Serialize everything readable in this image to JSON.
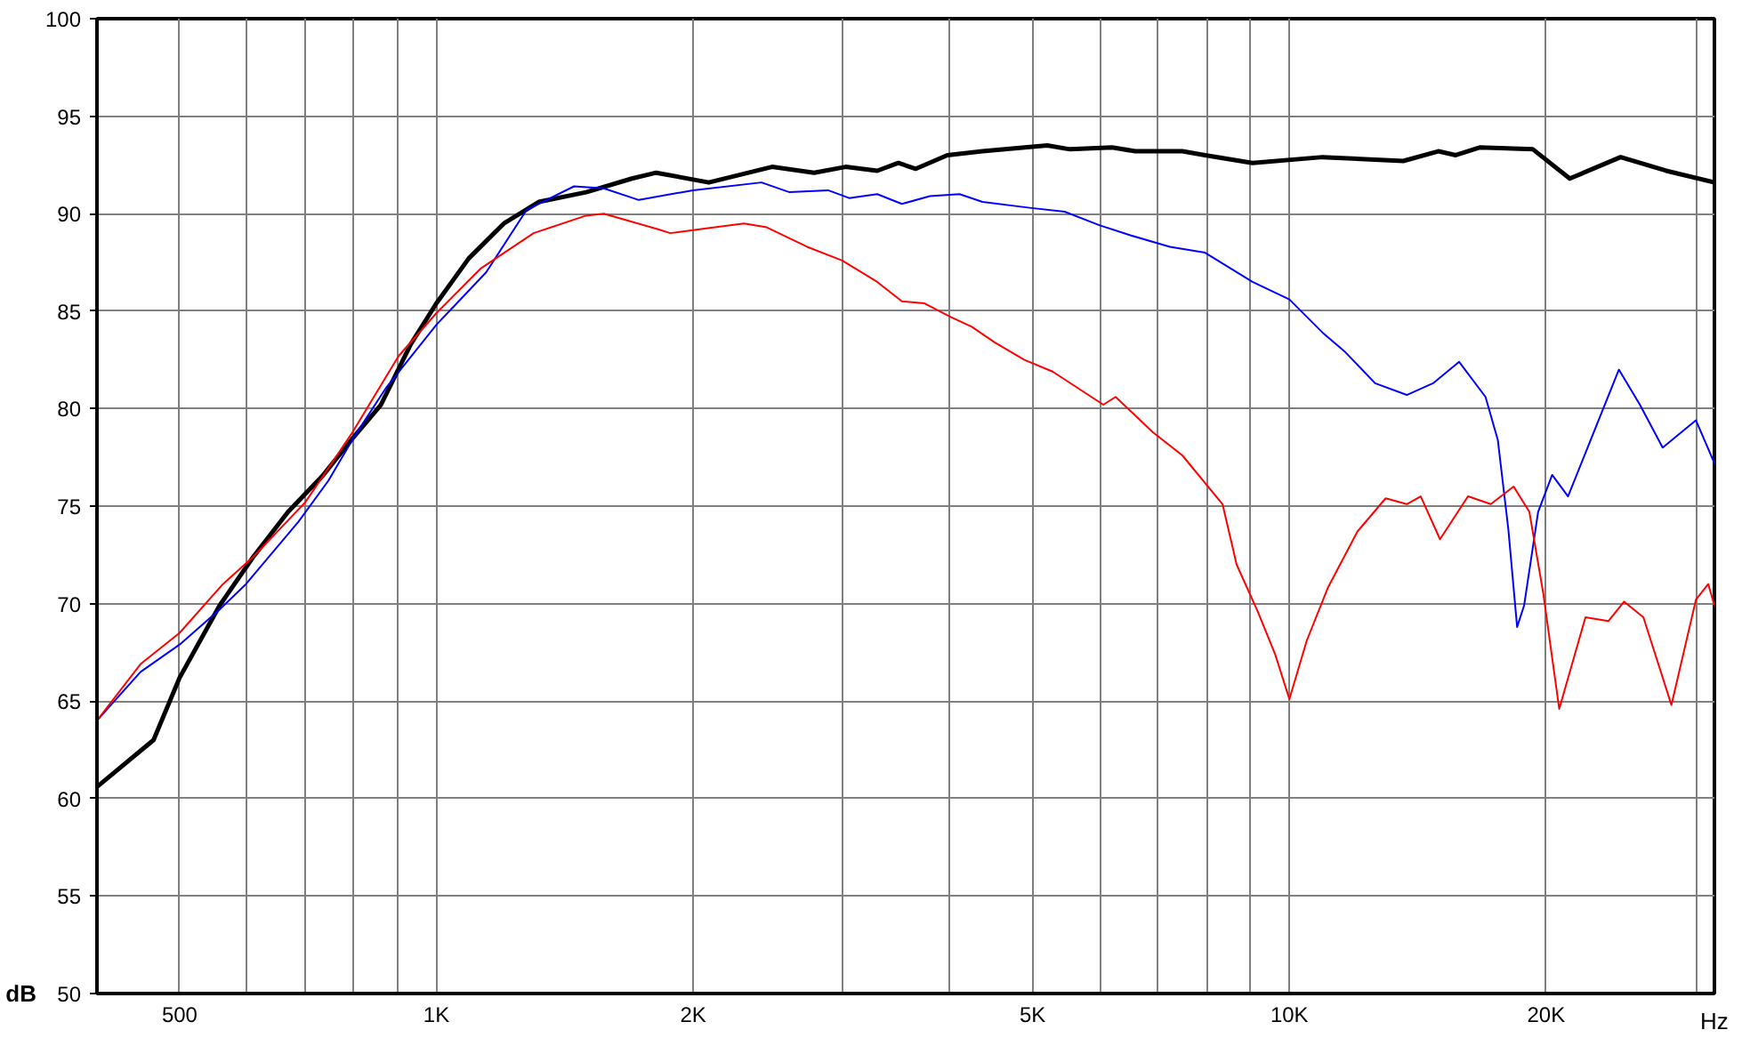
{
  "chart_data": {
    "type": "line",
    "xlabel": "Hz",
    "ylabel": "dB",
    "log": "x",
    "grid": true,
    "marker": "none",
    "line_style": "solid",
    "xlim": [
      400,
      31500
    ],
    "ylim": [
      50,
      100
    ],
    "xticks": [
      {
        "value": 400,
        "label": null
      },
      {
        "value": 500,
        "label": "500"
      },
      {
        "value": 600,
        "label": null
      },
      {
        "value": 700,
        "label": null
      },
      {
        "value": 800,
        "label": null
      },
      {
        "value": 900,
        "label": null
      },
      {
        "value": 1000,
        "label": "1K"
      },
      {
        "value": 2000,
        "label": "2K"
      },
      {
        "value": 3000,
        "label": null
      },
      {
        "value": 4000,
        "label": null
      },
      {
        "value": 5000,
        "label": "5K"
      },
      {
        "value": 6000,
        "label": null
      },
      {
        "value": 7000,
        "label": null
      },
      {
        "value": 8000,
        "label": null
      },
      {
        "value": 9000,
        "label": null
      },
      {
        "value": 10000,
        "label": "10K"
      },
      {
        "value": 20000,
        "label": "20K"
      },
      {
        "value": 30000,
        "label": null
      }
    ],
    "yticks": [
      50,
      55,
      60,
      65,
      70,
      75,
      80,
      85,
      90,
      95,
      100
    ],
    "series": [
      {
        "color": "#000000",
        "x": [
          400,
          466,
          500,
          557,
          610,
          670,
          737,
          795,
          861,
          933,
          1000,
          1091,
          1200,
          1318,
          1498,
          1695,
          1810,
          2086,
          2474,
          2772,
          3018,
          3287,
          3480,
          3648,
          3972,
          4368,
          5201,
          5532,
          6197,
          6593,
          7491,
          7964,
          9052,
          10937,
          13600,
          14947,
          15668,
          16740,
          19296,
          21317,
          24453,
          27653,
          31500
        ],
        "values": [
          60.6,
          63.0,
          66.2,
          69.9,
          72.4,
          74.7,
          76.6,
          78.4,
          80.2,
          83.3,
          85.4,
          87.7,
          89.5,
          90.6,
          91.1,
          91.8,
          92.1,
          91.6,
          92.4,
          92.1,
          92.4,
          92.2,
          92.6,
          92.3,
          93.0,
          93.2,
          93.5,
          93.3,
          93.4,
          93.2,
          93.2,
          93.0,
          92.6,
          92.9,
          92.7,
          93.2,
          93.0,
          93.4,
          93.3,
          91.8,
          92.9,
          92.2,
          91.6
        ]
      },
      {
        "color": "#0000ff",
        "x": [
          400,
          450,
          500,
          557,
          598,
          689,
          747,
          802,
          874,
          1000,
          1144,
          1276,
          1450,
          1571,
          1727,
          1999,
          2405,
          2594,
          2879,
          3047,
          3287,
          3513,
          3789,
          4105,
          4368,
          4960,
          5452,
          5995,
          6497,
          7244,
          7964,
          9052,
          10000,
          10937,
          11628,
          12604,
          13729,
          14737,
          15815,
          16980,
          17553,
          18061,
          18493,
          18845,
          19571,
          20328,
          21217,
          22560,
          24339,
          25760,
          27393,
          29968,
          31500
        ],
        "values": [
          64.0,
          66.5,
          67.9,
          69.7,
          71.0,
          74.2,
          76.3,
          78.6,
          81.1,
          84.3,
          87.0,
          90.2,
          91.4,
          91.3,
          90.7,
          91.2,
          91.6,
          91.1,
          91.2,
          90.8,
          91.0,
          90.5,
          90.9,
          91.0,
          90.6,
          90.3,
          90.1,
          89.4,
          88.9,
          88.3,
          88.0,
          86.5,
          85.6,
          83.9,
          82.9,
          81.3,
          80.7,
          81.3,
          82.4,
          80.6,
          78.4,
          73.8,
          68.8,
          69.9,
          74.7,
          76.6,
          75.5,
          78.4,
          82.0,
          80.2,
          78.0,
          79.4,
          77.2
        ]
      },
      {
        "color": "#ff0000",
        "x": [
          400,
          450,
          500,
          562,
          610,
          702,
          795,
          903,
          1000,
          1128,
          1300,
          1498,
          1571,
          1819,
          1880,
          2294,
          2439,
          2720,
          2990,
          3287,
          3513,
          3735,
          4008,
          4243,
          4512,
          4891,
          5277,
          6052,
          6256,
          6913,
          7491,
          8349,
          8673,
          9180,
          9624,
          10000,
          10480,
          11092,
          12018,
          12968,
          13729,
          14256,
          15017,
          16196,
          17225,
          18319,
          19115,
          19849,
          20718,
          22241,
          23653,
          24685,
          26004,
          28048,
          29968,
          30980,
          31500
        ],
        "values": [
          64.0,
          66.9,
          68.5,
          71.0,
          72.4,
          75.2,
          78.7,
          82.7,
          84.9,
          87.2,
          89.0,
          89.9,
          90.0,
          89.2,
          89.0,
          89.5,
          89.3,
          88.3,
          87.6,
          86.5,
          85.5,
          85.4,
          84.7,
          84.2,
          83.4,
          82.5,
          81.9,
          80.2,
          80.6,
          78.8,
          77.6,
          75.1,
          72.0,
          69.6,
          67.4,
          65.1,
          68.1,
          70.8,
          73.7,
          75.4,
          75.1,
          75.5,
          73.3,
          75.5,
          75.1,
          76.0,
          74.7,
          70.5,
          64.6,
          69.3,
          69.1,
          70.1,
          69.3,
          64.8,
          70.2,
          71.0,
          69.9
        ]
      }
    ]
  }
}
